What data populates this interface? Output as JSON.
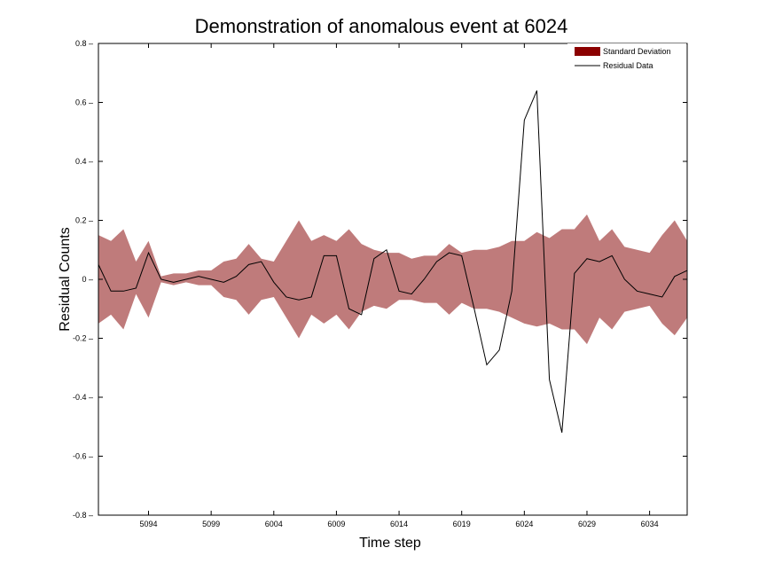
{
  "chart_data": {
    "type": "area",
    "title": "Demonstration of anomalous event at 6024",
    "xlabel": "Time step",
    "ylabel": "Residual Counts",
    "ylim": [
      -0.8,
      0.8
    ],
    "xlim": [
      0,
      47
    ],
    "x_tick_positions": [
      4,
      9,
      14,
      19,
      24,
      29,
      34,
      39,
      44
    ],
    "x_tick_labels": [
      "5094",
      "5099",
      "6004",
      "6009",
      "6014",
      "6019",
      "6024",
      "6029",
      "6034"
    ],
    "y_ticks": [
      -0.8,
      -0.6,
      -0.4,
      -0.2,
      0,
      0.2,
      0.4,
      0.6,
      0.8
    ],
    "y_tick_labels": [
      "-0.8",
      "-0.6",
      "-0.4",
      "-0.2",
      "0",
      "0.2",
      "0.4",
      "0.6",
      "0.8"
    ],
    "legend_position": "top-right",
    "series": [
      {
        "name": "Standard Deviation",
        "kind": "band",
        "color": "#8b0000",
        "fill_color": "#bf7b7b",
        "upper": [
          0.15,
          0.13,
          0.17,
          0.06,
          0.13,
          0.01,
          0.02,
          0.02,
          0.03,
          0.03,
          0.06,
          0.07,
          0.12,
          0.07,
          0.06,
          0.13,
          0.2,
          0.13,
          0.15,
          0.13,
          0.17,
          0.12,
          0.1,
          0.09,
          0.09,
          0.07,
          0.08,
          0.08,
          0.12,
          0.09,
          0.1,
          0.1,
          0.11,
          0.13,
          0.13,
          0.16,
          0.14,
          0.17,
          0.17,
          0.22,
          0.13,
          0.17,
          0.11,
          0.1,
          0.09,
          0.15,
          0.2,
          0.13
        ],
        "lower": [
          -0.15,
          -0.12,
          -0.17,
          -0.05,
          -0.13,
          -0.01,
          -0.02,
          -0.01,
          -0.02,
          -0.02,
          -0.06,
          -0.07,
          -0.12,
          -0.07,
          -0.06,
          -0.13,
          -0.2,
          -0.12,
          -0.15,
          -0.12,
          -0.17,
          -0.11,
          -0.09,
          -0.1,
          -0.07,
          -0.07,
          -0.08,
          -0.08,
          -0.12,
          -0.08,
          -0.1,
          -0.1,
          -0.11,
          -0.13,
          -0.15,
          -0.16,
          -0.15,
          -0.17,
          -0.17,
          -0.22,
          -0.13,
          -0.17,
          -0.11,
          -0.1,
          -0.09,
          -0.15,
          -0.19,
          -0.13
        ]
      },
      {
        "name": "Residual Data",
        "kind": "line",
        "color": "#000000",
        "values": [
          0.05,
          -0.04,
          -0.04,
          -0.03,
          0.09,
          0.0,
          -0.01,
          0.0,
          0.01,
          0.0,
          -0.01,
          0.01,
          0.05,
          0.06,
          -0.01,
          -0.06,
          -0.07,
          -0.06,
          0.08,
          0.08,
          -0.1,
          -0.12,
          0.07,
          0.1,
          -0.04,
          -0.05,
          0.0,
          0.06,
          0.09,
          0.08,
          -0.1,
          -0.29,
          -0.24,
          -0.04,
          0.54,
          0.64,
          -0.34,
          -0.52,
          0.02,
          0.07,
          0.06,
          0.08,
          0.0,
          -0.04,
          -0.05,
          -0.06,
          0.01,
          0.03
        ]
      }
    ]
  }
}
